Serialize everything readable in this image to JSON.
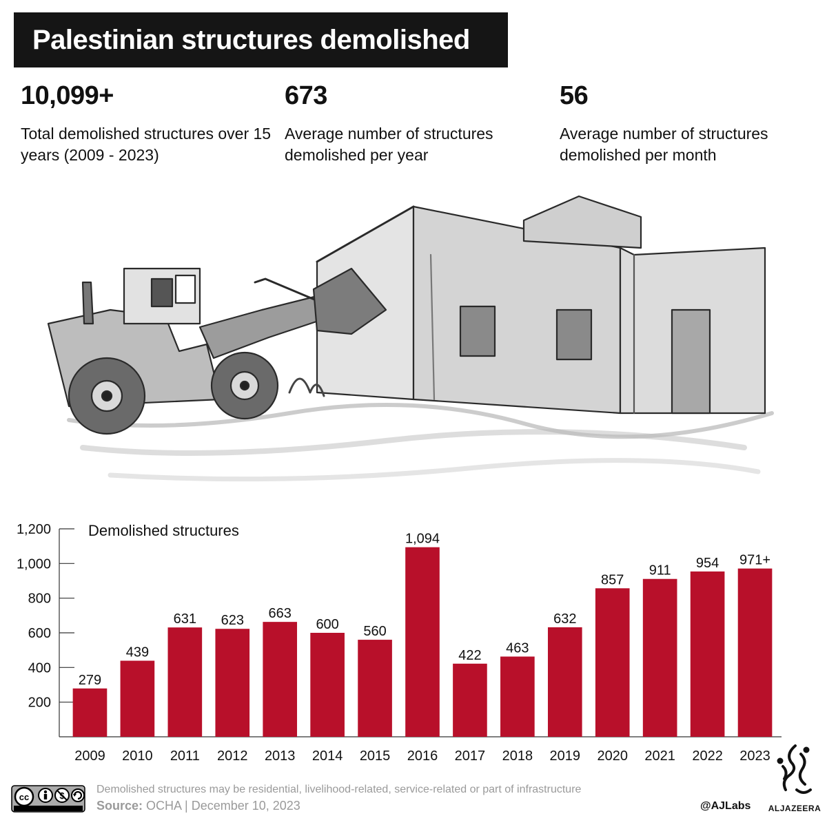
{
  "title": "Palestinian structures demolished",
  "stats": [
    {
      "value": "10,099+",
      "label": "Total demolished structures over 15 years (2009 - 2023)"
    },
    {
      "value": "673",
      "label": "Average number of structures demolished per year"
    },
    {
      "value": "56",
      "label": "Average number of structures demolished per month"
    }
  ],
  "chart_data": {
    "type": "bar",
    "title": "Demolished structures",
    "categories": [
      "2009",
      "2010",
      "2011",
      "2012",
      "2013",
      "2014",
      "2015",
      "2016",
      "2017",
      "2018",
      "2019",
      "2020",
      "2021",
      "2022",
      "2023"
    ],
    "values": [
      279,
      439,
      631,
      623,
      663,
      600,
      560,
      1094,
      422,
      463,
      632,
      857,
      911,
      954,
      971
    ],
    "value_labels": [
      "279",
      "439",
      "631",
      "623",
      "663",
      "600",
      "560",
      "1,094",
      "422",
      "463",
      "632",
      "857",
      "911",
      "954",
      "971+"
    ],
    "ylim": [
      0,
      1200
    ],
    "yticks": [
      200,
      400,
      600,
      800,
      1000,
      1200
    ],
    "ytick_labels": [
      "200",
      "400",
      "600",
      "800",
      "1,000",
      "1,200"
    ],
    "bar_color": "#b8102a",
    "grid": false
  },
  "footer": {
    "note": "Demolished structures may be residential, livelihood-related, service-related or part of infrastructure",
    "source_label": "Source:",
    "source_text": " OCHA | December 10, 2023",
    "handle": "@AJLabs",
    "logo_text": "ALJAZEERA",
    "license_icon": "creative-commons-by-nc-sa-icon",
    "logo_icon": "aljazeera-logo-icon"
  }
}
